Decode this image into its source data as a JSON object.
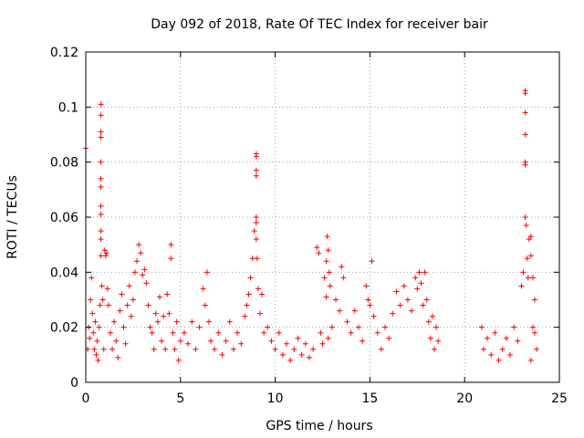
{
  "chart_data": {
    "type": "scatter",
    "title": "Day 092 of 2018, Rate Of TEC Index for receiver bair",
    "xlabel": "GPS time / hours",
    "ylabel": "ROTI / TECUs",
    "xlim": [
      0,
      25
    ],
    "ylim": [
      0,
      0.12
    ],
    "xticks": [
      0,
      5,
      10,
      15,
      20,
      25
    ],
    "xtick_labels": [
      "0",
      "5",
      "10",
      "15",
      "20",
      "25"
    ],
    "yticks": [
      0,
      0.02,
      0.04,
      0.06,
      0.08,
      0.1,
      0.12
    ],
    "ytick_labels": [
      "0",
      "0.02",
      "0.04",
      "0.06",
      "0.08",
      "0.1",
      "0.12"
    ],
    "grid": true,
    "marker": "+",
    "color": "#ff0000",
    "series": [
      {
        "name": "ROTI",
        "points": [
          [
            0.0,
            0.085
          ],
          [
            0.1,
            0.012
          ],
          [
            0.15,
            0.02
          ],
          [
            0.2,
            0.016
          ],
          [
            0.25,
            0.03
          ],
          [
            0.3,
            0.038
          ],
          [
            0.35,
            0.025
          ],
          [
            0.4,
            0.018
          ],
          [
            0.45,
            0.012
          ],
          [
            0.5,
            0.022
          ],
          [
            0.55,
            0.01
          ],
          [
            0.6,
            0.015
          ],
          [
            0.65,
            0.008
          ],
          [
            0.7,
            0.02
          ],
          [
            0.75,
            0.028
          ],
          [
            0.8,
            0.101
          ],
          [
            0.8,
            0.097
          ],
          [
            0.8,
            0.091
          ],
          [
            0.8,
            0.089
          ],
          [
            0.8,
            0.08
          ],
          [
            0.8,
            0.074
          ],
          [
            0.8,
            0.071
          ],
          [
            0.8,
            0.064
          ],
          [
            0.8,
            0.061
          ],
          [
            0.8,
            0.055
          ],
          [
            0.8,
            0.052
          ],
          [
            0.8,
            0.046
          ],
          [
            0.85,
            0.035
          ],
          [
            0.9,
            0.03
          ],
          [
            0.95,
            0.012
          ],
          [
            1.0,
            0.048
          ],
          [
            1.05,
            0.046
          ],
          [
            1.1,
            0.047
          ],
          [
            1.15,
            0.034
          ],
          [
            1.2,
            0.028
          ],
          [
            1.3,
            0.018
          ],
          [
            1.4,
            0.012
          ],
          [
            1.5,
            0.022
          ],
          [
            1.6,
            0.015
          ],
          [
            1.7,
            0.009
          ],
          [
            1.8,
            0.026
          ],
          [
            1.9,
            0.032
          ],
          [
            2.0,
            0.02
          ],
          [
            2.1,
            0.014
          ],
          [
            2.2,
            0.028
          ],
          [
            2.3,
            0.035
          ],
          [
            2.4,
            0.024
          ],
          [
            2.5,
            0.03
          ],
          [
            2.6,
            0.04
          ],
          [
            2.7,
            0.044
          ],
          [
            2.8,
            0.05
          ],
          [
            2.9,
            0.047
          ],
          [
            3.0,
            0.039
          ],
          [
            3.1,
            0.041
          ],
          [
            3.2,
            0.036
          ],
          [
            3.3,
            0.028
          ],
          [
            3.4,
            0.02
          ],
          [
            3.5,
            0.018
          ],
          [
            3.6,
            0.012
          ],
          [
            3.7,
            0.025
          ],
          [
            3.8,
            0.022
          ],
          [
            3.9,
            0.031
          ],
          [
            4.0,
            0.015
          ],
          [
            4.1,
            0.024
          ],
          [
            4.2,
            0.012
          ],
          [
            4.3,
            0.032
          ],
          [
            4.4,
            0.025
          ],
          [
            4.5,
            0.05
          ],
          [
            4.5,
            0.045
          ],
          [
            4.6,
            0.018
          ],
          [
            4.7,
            0.012
          ],
          [
            4.8,
            0.022
          ],
          [
            4.9,
            0.008
          ],
          [
            5.0,
            0.015
          ],
          [
            5.2,
            0.018
          ],
          [
            5.4,
            0.014
          ],
          [
            5.6,
            0.022
          ],
          [
            5.8,
            0.012
          ],
          [
            6.0,
            0.02
          ],
          [
            6.2,
            0.034
          ],
          [
            6.3,
            0.028
          ],
          [
            6.4,
            0.04
          ],
          [
            6.5,
            0.022
          ],
          [
            6.6,
            0.015
          ],
          [
            6.8,
            0.012
          ],
          [
            7.0,
            0.018
          ],
          [
            7.2,
            0.01
          ],
          [
            7.4,
            0.015
          ],
          [
            7.6,
            0.022
          ],
          [
            7.8,
            0.012
          ],
          [
            8.0,
            0.018
          ],
          [
            8.2,
            0.014
          ],
          [
            8.4,
            0.024
          ],
          [
            8.5,
            0.028
          ],
          [
            8.6,
            0.032
          ],
          [
            8.7,
            0.038
          ],
          [
            8.8,
            0.045
          ],
          [
            8.9,
            0.055
          ],
          [
            9.0,
            0.083
          ],
          [
            9.0,
            0.082
          ],
          [
            9.0,
            0.077
          ],
          [
            9.0,
            0.075
          ],
          [
            9.0,
            0.06
          ],
          [
            9.0,
            0.058
          ],
          [
            9.0,
            0.052
          ],
          [
            9.05,
            0.045
          ],
          [
            9.1,
            0.034
          ],
          [
            9.2,
            0.025
          ],
          [
            9.3,
            0.032
          ],
          [
            9.4,
            0.018
          ],
          [
            9.6,
            0.02
          ],
          [
            9.8,
            0.015
          ],
          [
            10.0,
            0.012
          ],
          [
            10.2,
            0.018
          ],
          [
            10.4,
            0.01
          ],
          [
            10.6,
            0.014
          ],
          [
            10.8,
            0.008
          ],
          [
            11.0,
            0.012
          ],
          [
            11.2,
            0.016
          ],
          [
            11.4,
            0.01
          ],
          [
            11.6,
            0.014
          ],
          [
            11.8,
            0.009
          ],
          [
            12.0,
            0.012
          ],
          [
            12.2,
            0.049
          ],
          [
            12.3,
            0.047
          ],
          [
            12.4,
            0.018
          ],
          [
            12.5,
            0.014
          ],
          [
            12.6,
            0.038
          ],
          [
            12.7,
            0.044
          ],
          [
            12.75,
            0.053
          ],
          [
            12.8,
            0.048
          ],
          [
            12.85,
            0.04
          ],
          [
            12.9,
            0.035
          ],
          [
            12.7,
            0.031
          ],
          [
            12.8,
            0.016
          ],
          [
            13.0,
            0.02
          ],
          [
            13.2,
            0.03
          ],
          [
            13.4,
            0.026
          ],
          [
            13.5,
            0.042
          ],
          [
            13.6,
            0.038
          ],
          [
            13.8,
            0.022
          ],
          [
            14.0,
            0.018
          ],
          [
            14.2,
            0.026
          ],
          [
            14.4,
            0.02
          ],
          [
            14.6,
            0.015
          ],
          [
            14.8,
            0.035
          ],
          [
            14.9,
            0.03
          ],
          [
            15.0,
            0.028
          ],
          [
            15.1,
            0.044
          ],
          [
            15.2,
            0.024
          ],
          [
            15.4,
            0.018
          ],
          [
            15.6,
            0.012
          ],
          [
            15.8,
            0.02
          ],
          [
            16.0,
            0.016
          ],
          [
            16.2,
            0.025
          ],
          [
            16.4,
            0.033
          ],
          [
            16.6,
            0.028
          ],
          [
            16.8,
            0.035
          ],
          [
            17.0,
            0.03
          ],
          [
            17.2,
            0.026
          ],
          [
            17.4,
            0.038
          ],
          [
            17.5,
            0.034
          ],
          [
            17.6,
            0.04
          ],
          [
            17.7,
            0.036
          ],
          [
            17.8,
            0.028
          ],
          [
            17.9,
            0.04
          ],
          [
            18.0,
            0.03
          ],
          [
            18.1,
            0.022
          ],
          [
            18.2,
            0.016
          ],
          [
            18.3,
            0.024
          ],
          [
            18.4,
            0.012
          ],
          [
            18.5,
            0.02
          ],
          [
            18.6,
            0.015
          ],
          [
            20.9,
            0.02
          ],
          [
            21.0,
            0.012
          ],
          [
            21.2,
            0.016
          ],
          [
            21.4,
            0.01
          ],
          [
            21.6,
            0.018
          ],
          [
            21.8,
            0.008
          ],
          [
            22.0,
            0.012
          ],
          [
            22.2,
            0.016
          ],
          [
            22.4,
            0.01
          ],
          [
            22.6,
            0.02
          ],
          [
            22.8,
            0.015
          ],
          [
            23.0,
            0.035
          ],
          [
            23.1,
            0.04
          ],
          [
            23.2,
            0.106
          ],
          [
            23.2,
            0.105
          ],
          [
            23.2,
            0.098
          ],
          [
            23.2,
            0.09
          ],
          [
            23.2,
            0.08
          ],
          [
            23.2,
            0.079
          ],
          [
            23.2,
            0.06
          ],
          [
            23.25,
            0.057
          ],
          [
            23.3,
            0.045
          ],
          [
            23.35,
            0.038
          ],
          [
            23.4,
            0.052
          ],
          [
            23.5,
            0.053
          ],
          [
            23.5,
            0.046
          ],
          [
            23.6,
            0.038
          ],
          [
            23.7,
            0.03
          ],
          [
            23.7,
            0.018
          ],
          [
            23.8,
            0.012
          ],
          [
            23.6,
            0.02
          ],
          [
            23.5,
            0.008
          ]
        ]
      }
    ]
  }
}
